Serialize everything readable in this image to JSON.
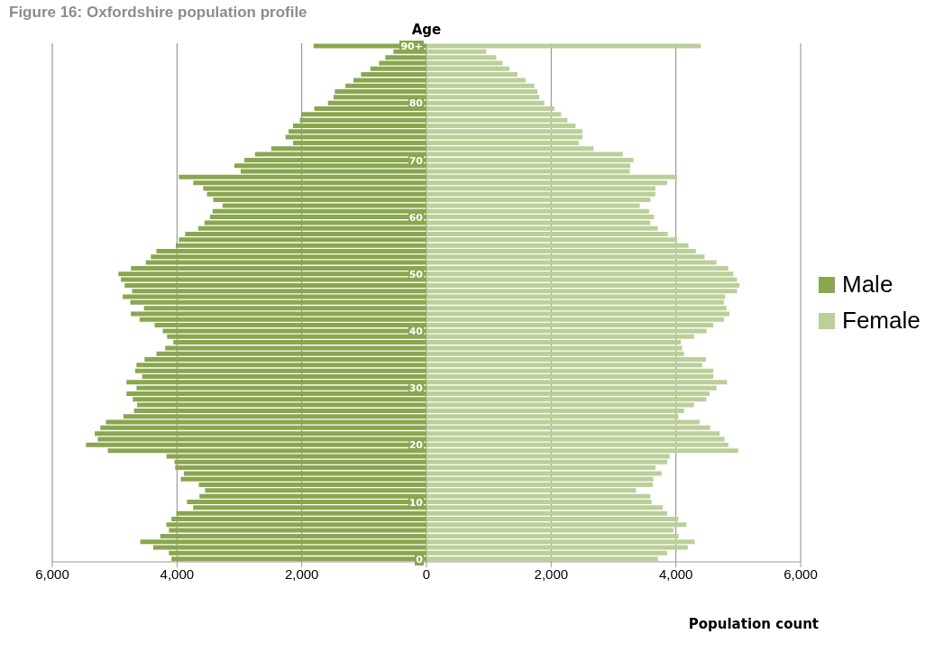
{
  "chart_data": {
    "type": "bar",
    "orientation": "horizontal",
    "stacked": true,
    "title": "Figure 16: Oxfordshire population profile",
    "ylabel": "Age",
    "xlabel": "Population count",
    "categories": [
      "90+",
      null,
      null,
      null,
      null,
      null,
      null,
      null,
      null,
      null,
      "80",
      null,
      null,
      null,
      null,
      null,
      null,
      null,
      null,
      null,
      "70",
      null,
      null,
      null,
      null,
      null,
      null,
      null,
      null,
      null,
      "60",
      null,
      null,
      null,
      null,
      null,
      null,
      null,
      null,
      null,
      "50",
      null,
      null,
      null,
      null,
      null,
      null,
      null,
      null,
      null,
      "40",
      null,
      null,
      null,
      null,
      null,
      null,
      null,
      null,
      null,
      "30",
      null,
      null,
      null,
      null,
      null,
      null,
      null,
      null,
      null,
      "20",
      null,
      null,
      null,
      null,
      null,
      null,
      null,
      null,
      null,
      "10",
      null,
      null,
      null,
      null,
      null,
      null,
      null,
      null,
      null,
      "0"
    ],
    "series": [
      {
        "name": "Male",
        "color": "#8aa64e",
        "values": [
          -1810,
          -530,
          -660,
          -760,
          -900,
          -1050,
          -1170,
          -1300,
          -1470,
          -1490,
          -1580,
          -1800,
          -2000,
          -2030,
          -2140,
          -2210,
          -2260,
          -2140,
          -2490,
          -2750,
          -2920,
          -3080,
          -2980,
          -3970,
          -3740,
          -3580,
          -3520,
          -3420,
          -3270,
          -3430,
          -3470,
          -3560,
          -3660,
          -3870,
          -3970,
          -4020,
          -4330,
          -4420,
          -4500,
          -4740,
          -4940,
          -4900,
          -4840,
          -4720,
          -4870,
          -4750,
          -4530,
          -4740,
          -4600,
          -4360,
          -4230,
          -4160,
          -4060,
          -4190,
          -4330,
          -4520,
          -4650,
          -4670,
          -4560,
          -4810,
          -4650,
          -4810,
          -4710,
          -4640,
          -4690,
          -4860,
          -5140,
          -5230,
          -5320,
          -5270,
          -5460,
          -5110,
          -4170,
          -4040,
          -4030,
          -3890,
          -3940,
          -3650,
          -3550,
          -3640,
          -3840,
          -3740,
          -4010,
          -4090,
          -4170,
          -4130,
          -4270,
          -4590,
          -4380,
          -4130,
          -4090
        ]
      },
      {
        "name": "Female",
        "color": "#bbcf98",
        "values": [
          4400,
          960,
          1120,
          1220,
          1330,
          1460,
          1590,
          1730,
          1780,
          1810,
          1890,
          2050,
          2160,
          2260,
          2390,
          2500,
          2500,
          2440,
          2680,
          3150,
          3320,
          3270,
          3260,
          4020,
          3860,
          3670,
          3670,
          3590,
          3420,
          3570,
          3650,
          3590,
          3710,
          3870,
          4020,
          4200,
          4320,
          4460,
          4650,
          4840,
          4920,
          4980,
          5020,
          4980,
          4790,
          4770,
          4810,
          4860,
          4770,
          4600,
          4490,
          4290,
          4080,
          4100,
          4130,
          4480,
          4420,
          4600,
          4600,
          4820,
          4650,
          4540,
          4490,
          4290,
          4130,
          4040,
          4380,
          4550,
          4700,
          4780,
          4840,
          5000,
          3900,
          3860,
          3670,
          3770,
          3640,
          3630,
          3360,
          3590,
          3610,
          3790,
          3860,
          4040,
          4170,
          3960,
          4040,
          4300,
          4190,
          3860,
          3710
        ]
      }
    ],
    "xlim": [
      -6000,
      6000
    ],
    "xticks": [
      {
        "value": -6000,
        "label": "6,000"
      },
      {
        "value": -4000,
        "label": "4,000"
      },
      {
        "value": -2000,
        "label": "2,000"
      },
      {
        "value": 0,
        "label": "0"
      },
      {
        "value": 2000,
        "label": "2,000"
      },
      {
        "value": 4000,
        "label": "4,000"
      },
      {
        "value": 6000,
        "label": "6,000"
      }
    ],
    "grid": "x",
    "legend": "right"
  }
}
